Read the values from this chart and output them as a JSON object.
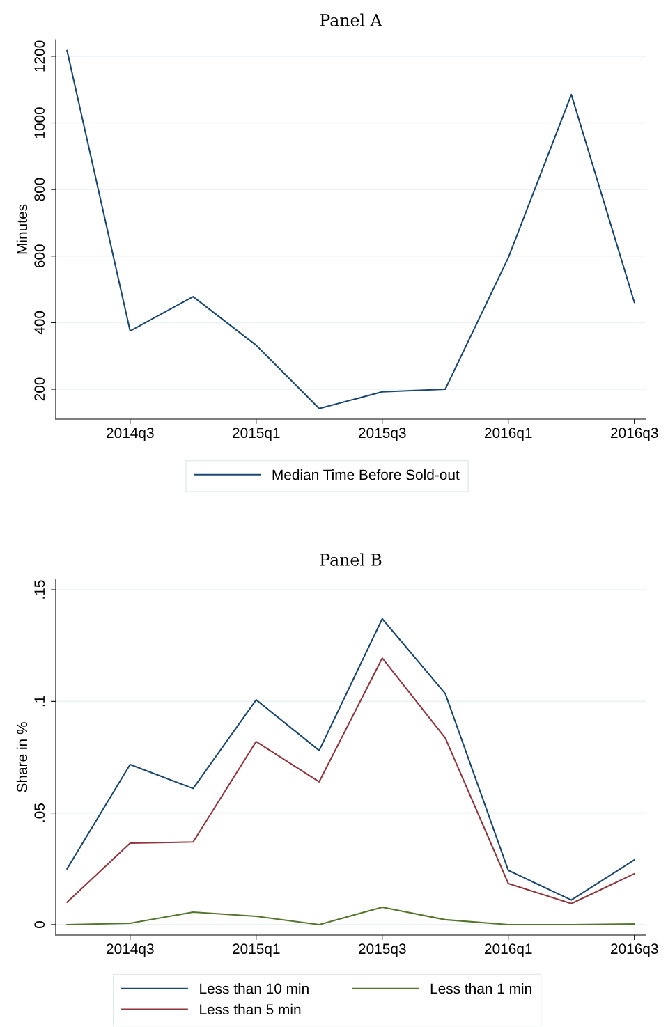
{
  "chart_data": [
    {
      "type": "line",
      "title": "Panel A",
      "ylabel": "Minutes",
      "categories": [
        null,
        "2014q3",
        null,
        "2015q1",
        null,
        "2015q3",
        null,
        "2016q1",
        null,
        "2016q3"
      ],
      "series": [
        {
          "name": "Median Time Before Sold-out",
          "color": "#1a476f",
          "values": [
            1217,
            375,
            478,
            332,
            142,
            192,
            200,
            595,
            1085,
            461
          ]
        }
      ],
      "ylim": [
        110,
        1250
      ],
      "yticks": [
        200,
        400,
        600,
        800,
        1000,
        1200
      ],
      "grid": "y",
      "legend": "bottom",
      "marker": "none",
      "line_style": "solid"
    },
    {
      "type": "line",
      "title": "Panel B",
      "ylabel": "Share in %",
      "categories": [
        null,
        "2014q3",
        null,
        "2015q1",
        null,
        "2015q3",
        null,
        "2016q1",
        null,
        "2016q3"
      ],
      "series": [
        {
          "name": "Less than 10 min",
          "color": "#1a476f",
          "values": [
            0.025,
            0.0717,
            0.061,
            0.1007,
            0.078,
            0.137,
            0.1035,
            0.0243,
            0.011,
            0.029
          ]
        },
        {
          "name": "Less than 5 min",
          "color": "#90353b",
          "values": [
            0.01,
            0.0365,
            0.037,
            0.082,
            0.064,
            0.1194,
            0.0836,
            0.0184,
            0.0094,
            0.0228
          ]
        },
        {
          "name": "Less than 1 min",
          "color": "#55752f",
          "values": [
            0,
            0.0006,
            0.0056,
            0.0037,
            0,
            0.0078,
            0.0022,
            0,
            0,
            0.0003
          ]
        }
      ],
      "ylim": [
        -0.0047,
        0.1547
      ],
      "yticks": [
        {
          "value": 0,
          "label": "0"
        },
        {
          "value": 0.05,
          "label": ".05"
        },
        {
          "value": 0.1,
          "label": ".1"
        },
        {
          "value": 0.15,
          "label": ".15"
        }
      ],
      "grid": "y",
      "legend": "bottom",
      "marker": "none",
      "line_style": "solid"
    }
  ]
}
